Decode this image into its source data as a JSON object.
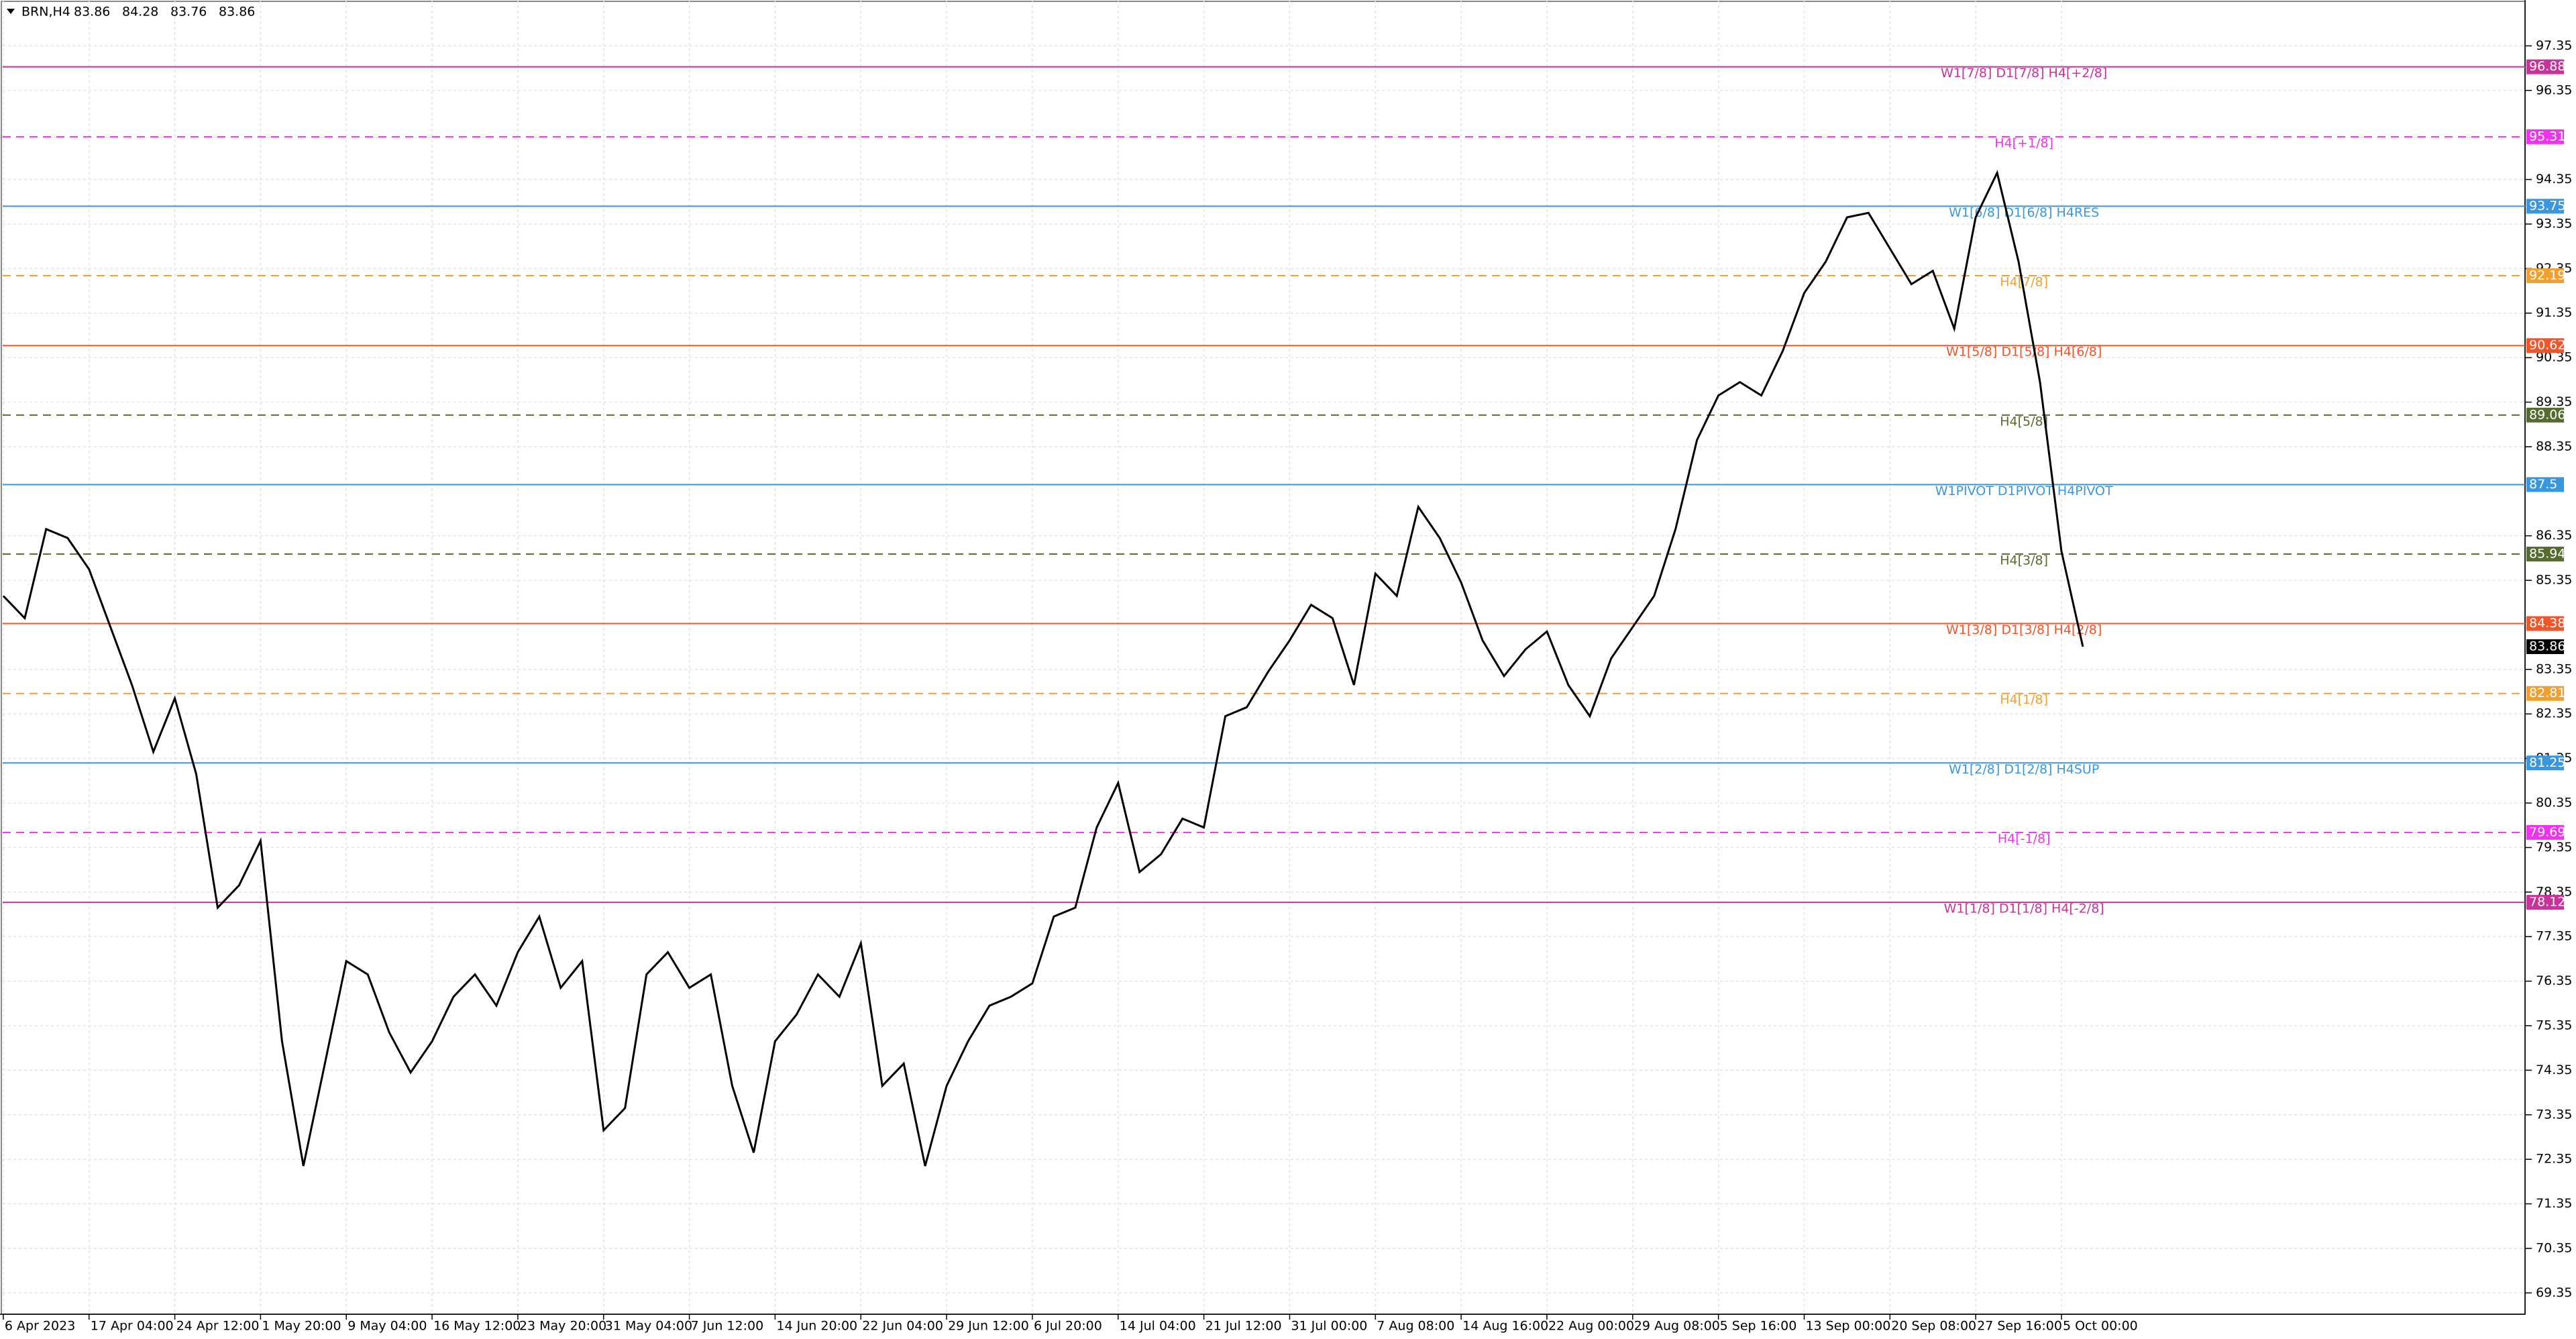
{
  "chart_data": {
    "type": "line",
    "title": "BRN,H4",
    "header_values": [
      83.86,
      84.28,
      83.76,
      83.86
    ],
    "categories": [
      "6 Apr 2023",
      null,
      null,
      null,
      "17 Apr 04:00",
      null,
      null,
      null,
      "24 Apr 12:00",
      null,
      null,
      null,
      "1 May 20:00",
      null,
      null,
      null,
      "9 May 04:00",
      null,
      null,
      null,
      "16 May 12:00",
      null,
      null,
      null,
      "23 May 20:00",
      null,
      null,
      null,
      "31 May 04:00",
      null,
      null,
      null,
      "7 Jun 12:00",
      null,
      null,
      null,
      "14 Jun 20:00",
      null,
      null,
      null,
      "22 Jun 04:00",
      null,
      null,
      null,
      "29 Jun 12:00",
      null,
      null,
      null,
      "6 Jul 20:00",
      null,
      null,
      null,
      "14 Jul 04:00",
      null,
      null,
      null,
      "21 Jul 12:00",
      null,
      null,
      null,
      "31 Jul 00:00",
      null,
      null,
      null,
      "7 Aug 08:00",
      null,
      null,
      null,
      "14 Aug 16:00",
      null,
      null,
      null,
      "22 Aug 00:00",
      null,
      null,
      null,
      "29 Aug 08:00",
      null,
      null,
      null,
      "5 Sep 16:00",
      null,
      null,
      null,
      "13 Sep 00:00",
      null,
      null,
      null,
      "20 Sep 08:00",
      null,
      null,
      null,
      "27 Sep 16:00",
      null,
      null,
      null,
      "5 Oct 00:00",
      null
    ],
    "series": [
      {
        "name": "BRN",
        "color": "#000000",
        "values": [
          85.0,
          84.5,
          86.5,
          86.3,
          85.6,
          84.3,
          83.0,
          81.5,
          82.7,
          81.0,
          78.0,
          78.5,
          79.5,
          75.0,
          72.2,
          74.5,
          76.8,
          76.5,
          75.2,
          74.3,
          75.0,
          76.0,
          76.5,
          75.8,
          77.0,
          77.8,
          76.2,
          76.8,
          73.0,
          73.5,
          76.5,
          77.0,
          76.2,
          76.5,
          74.0,
          72.5,
          75.0,
          75.6,
          76.5,
          76.0,
          77.2,
          74.0,
          74.5,
          72.2,
          74.0,
          75.0,
          75.8,
          76.0,
          76.3,
          77.8,
          78.0,
          79.8,
          80.8,
          78.8,
          79.2,
          80.0,
          79.8,
          82.3,
          82.5,
          83.3,
          84.0,
          84.8,
          84.5,
          83.0,
          85.5,
          85.0,
          87.0,
          86.3,
          85.3,
          84.0,
          83.2,
          83.8,
          84.2,
          83.0,
          82.3,
          83.6,
          84.3,
          85.0,
          86.5,
          88.5,
          89.5,
          89.8,
          89.5,
          90.5,
          91.8,
          92.5,
          93.5,
          93.6,
          92.8,
          92.0,
          92.3,
          91.0,
          93.5,
          94.5,
          92.5,
          89.8,
          86.0,
          83.86
        ]
      }
    ],
    "ylim": [
      68.87,
      98.38
    ],
    "yticks": [
      97.35,
      96.35,
      94.35,
      93.35,
      92.35,
      91.35,
      90.35,
      89.35,
      88.35,
      86.35,
      85.35,
      83.35,
      82.35,
      81.35,
      80.35,
      79.35,
      78.35,
      77.35,
      76.35,
      75.35,
      74.35,
      73.35,
      72.35,
      71.35,
      70.35,
      69.35
    ],
    "grid": true,
    "last_price": 83.86,
    "levels": [
      {
        "value": 96.88,
        "label": "W1[7/8] D1[7/8] H4[+2/8]",
        "color": "#c8329b",
        "dashed": false
      },
      {
        "value": 95.31,
        "label": "H4[+1/8]",
        "color": "#ee33ee",
        "dashed": true
      },
      {
        "value": 93.75,
        "label": "W1[6/8] D1[6/8] H4RES",
        "color": "#3a96dd",
        "dashed": false
      },
      {
        "value": 92.19,
        "label": "H4[7/8]",
        "color": "#f0a030",
        "dashed": true
      },
      {
        "value": 90.62,
        "label": "W1[5/8] D1[5/8] H4[6/8]",
        "color": "#f0562a",
        "dashed": false
      },
      {
        "value": 89.06,
        "label": "H4[5/8]",
        "color": "#556b2f",
        "dashed": true
      },
      {
        "value": 87.5,
        "label": "W1PIVOT D1PIVOT H4PIVOT",
        "color": "#3a96dd",
        "dashed": false
      },
      {
        "value": 85.94,
        "label": "H4[3/8]",
        "color": "#556b2f",
        "dashed": true
      },
      {
        "value": 84.38,
        "label": "W1[3/8] D1[3/8] H4[2/8]",
        "color": "#f0562a",
        "dashed": false
      },
      {
        "value": 82.81,
        "label": "H4[1/8]",
        "color": "#f0a030",
        "dashed": true
      },
      {
        "value": 81.25,
        "label": "W1[2/8] D1[2/8] H4SUP",
        "color": "#3a96dd",
        "dashed": false
      },
      {
        "value": 79.69,
        "label": "H4[-1/8]",
        "color": "#ee33ee",
        "dashed": true
      },
      {
        "value": 78.12,
        "label": "W1[1/8] D1[1/8] H4[-2/8]",
        "color": "#c8329b",
        "dashed": false
      }
    ]
  }
}
